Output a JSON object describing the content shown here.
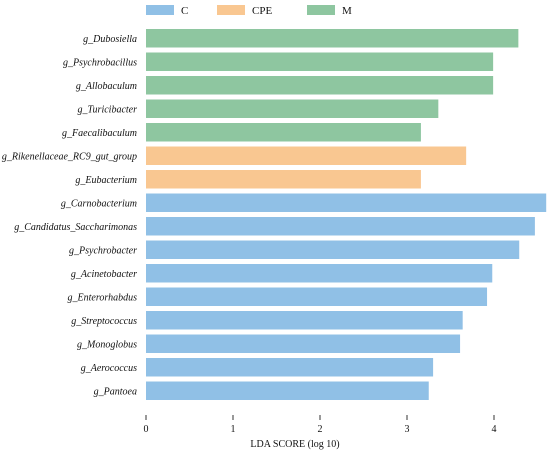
{
  "chart_data": {
    "type": "bar",
    "orientation": "horizontal",
    "xlabel": "LDA SCORE (log 10)",
    "xlim": [
      0,
      4.6
    ],
    "xticks": [
      "0",
      "1",
      "2",
      "3",
      "4"
    ],
    "legend": [
      {
        "name": "C",
        "color": "#90c0e6"
      },
      {
        "name": "CPE",
        "color": "#f9c791"
      },
      {
        "name": "M",
        "color": "#8ec6a0"
      }
    ],
    "legend_position": "top",
    "bars": [
      {
        "label": "g_Dubosiella",
        "value": 4.28,
        "group": "M"
      },
      {
        "label": "g_Psychrobacillus",
        "value": 3.99,
        "group": "M"
      },
      {
        "label": "g_Allobaculum",
        "value": 3.99,
        "group": "M"
      },
      {
        "label": "g_Turicibacter",
        "value": 3.36,
        "group": "M"
      },
      {
        "label": "g_Faecalibaculum",
        "value": 3.16,
        "group": "M"
      },
      {
        "label": "g_Rikenellaceae_RC9_gut_group",
        "value": 3.68,
        "group": "CPE"
      },
      {
        "label": "g_Eubacterium",
        "value": 3.16,
        "group": "CPE"
      },
      {
        "label": "g_Carnobacterium",
        "value": 4.6,
        "group": "C"
      },
      {
        "label": "g_Candidatus_Saccharimonas",
        "value": 4.47,
        "group": "C"
      },
      {
        "label": "g_Psychrobacter",
        "value": 4.29,
        "group": "C"
      },
      {
        "label": "g_Acinetobacter",
        "value": 3.98,
        "group": "C"
      },
      {
        "label": "g_Enterorhabdus",
        "value": 3.92,
        "group": "C"
      },
      {
        "label": "g_Streptococcus",
        "value": 3.64,
        "group": "C"
      },
      {
        "label": "g_Monoglobus",
        "value": 3.61,
        "group": "C"
      },
      {
        "label": "g_Aerococcus",
        "value": 3.3,
        "group": "C"
      },
      {
        "label": "g_Pantoea",
        "value": 3.25,
        "group": "C"
      }
    ]
  }
}
